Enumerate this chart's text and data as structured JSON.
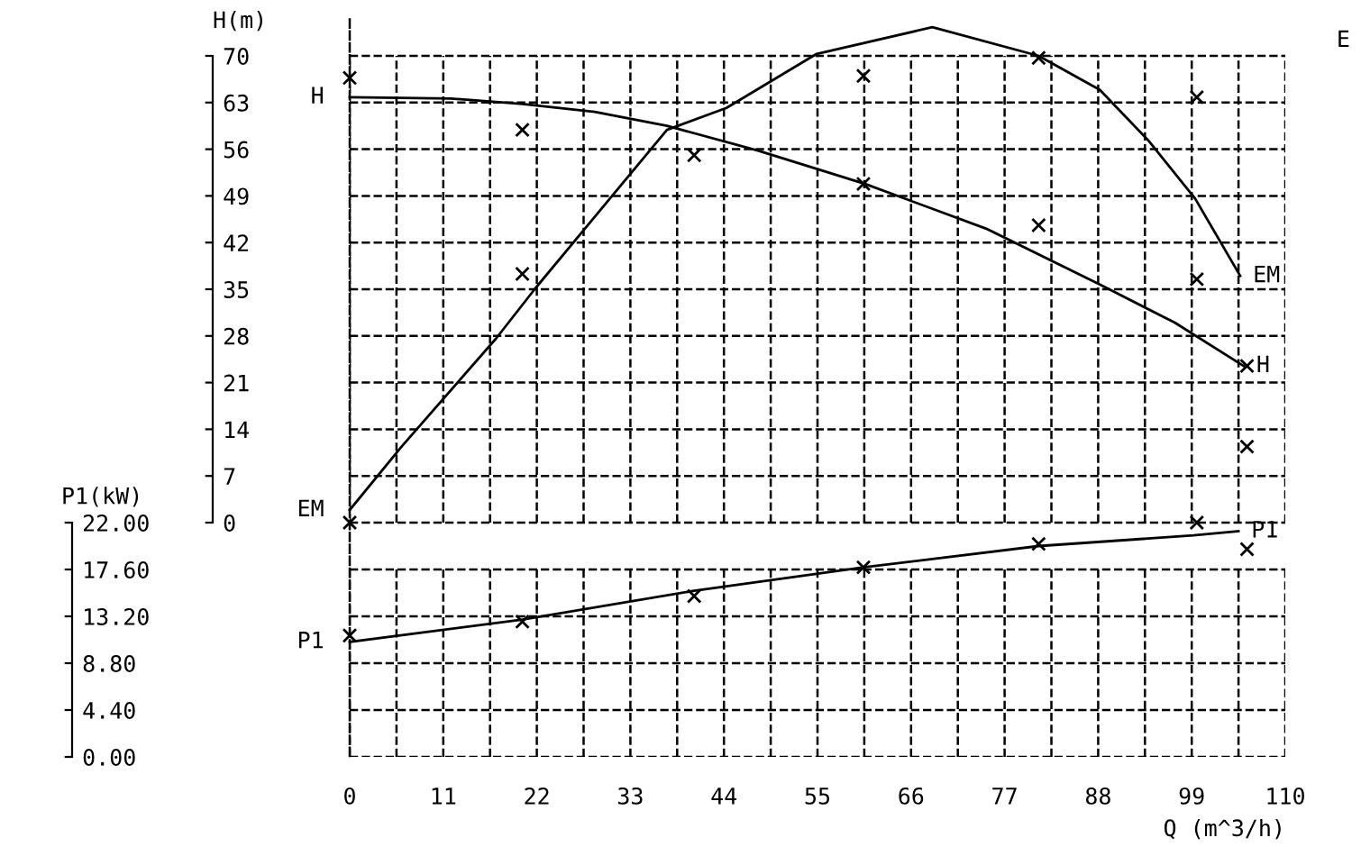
{
  "chart_data": {
    "type": "line",
    "xlabel": "Q (m^3/h)",
    "ylabel": "H(m)",
    "y2label": "P1(kW)",
    "xlim": [
      0,
      110
    ],
    "xticks": [
      0,
      {
        "value": 5.5,
        "label": null
      },
      11,
      {
        "value": 16.5,
        "label": null
      },
      22,
      {
        "value": 27.5,
        "label": null
      },
      33,
      {
        "value": 38.5,
        "label": null
      },
      44,
      {
        "value": 49.5,
        "label": null
      },
      55,
      {
        "value": 60.5,
        "label": null
      },
      66,
      {
        "value": 71.5,
        "label": null
      },
      77,
      {
        "value": 82.5,
        "label": null
      },
      88,
      {
        "value": 93.5,
        "label": null
      },
      99,
      {
        "value": 104.5,
        "label": null
      },
      110
    ],
    "ylim": [
      -35,
      76
    ],
    "yticks": [
      0,
      7,
      14,
      21,
      28,
      35,
      42,
      49,
      56,
      63,
      70
    ],
    "y2lim": [
      0,
      22
    ],
    "y2ticks": [
      {
        "value": 0,
        "label": "0.00"
      },
      {
        "value": 4.4,
        "label": "4.40"
      },
      {
        "value": 8.8,
        "label": "8.80"
      },
      {
        "value": 13.2,
        "label": "13.20"
      },
      {
        "value": 17.6,
        "label": "17.60"
      },
      {
        "value": 22,
        "label": "22.00"
      }
    ],
    "grid": true,
    "annotations": [
      "E"
    ],
    "series": [
      {
        "name": "H",
        "color": "#000000",
        "x": [
          0,
          11.9,
          20.3,
          28.8,
          37.3,
          48,
          60.6,
          75,
          88.2,
          97,
          105.1
        ],
        "values": [
          63.8,
          63.6,
          62.8,
          61.6,
          59.5,
          55.8,
          50.8,
          44,
          35.7,
          30,
          23.5
        ]
      },
      {
        "name": "EM",
        "color": "#000000",
        "x": [
          0,
          6.1,
          17.2,
          21.8,
          37.3,
          44.3,
          54.9,
          68.5,
          81,
          88.2,
          93.9,
          99.4,
          104.7
        ],
        "values": [
          1.9,
          11.4,
          27.6,
          35.1,
          58.9,
          62.2,
          70.3,
          74.3,
          70,
          64.9,
          57.3,
          48.6,
          37
        ]
      },
      {
        "name": "P1",
        "axis": "y2",
        "color": "#000000",
        "x": [
          0,
          20.3,
          40.5,
          60.4,
          81,
          99.2,
          104.5
        ],
        "values": [
          10.8,
          12.9,
          15.6,
          17.8,
          19.8,
          20.8,
          21.2
        ]
      },
      {
        "type": "scatter",
        "marker": "cross",
        "color": "#000000",
        "x": [
          0,
          20.3,
          60.4,
          81,
          99.6,
          105.5
        ],
        "values": [
          66.7,
          58.9,
          50.8,
          44.6,
          36.5,
          23.5
        ]
      },
      {
        "type": "scatter",
        "marker": "cross",
        "color": "#000000",
        "x": [
          0,
          20.3,
          40.5,
          60.4,
          81,
          99.6,
          105.5
        ],
        "values": [
          0,
          37.3,
          55.1,
          67,
          69.7,
          63.8,
          11.4
        ]
      },
      {
        "type": "scatter",
        "marker": "cross",
        "axis": "y2",
        "color": "#000000",
        "x": [
          0,
          20.3,
          40.5,
          60.4,
          81,
          99.6,
          105.5
        ],
        "values": [
          11.4,
          12.7,
          15.1,
          17.8,
          20,
          22,
          19.5
        ]
      }
    ]
  }
}
